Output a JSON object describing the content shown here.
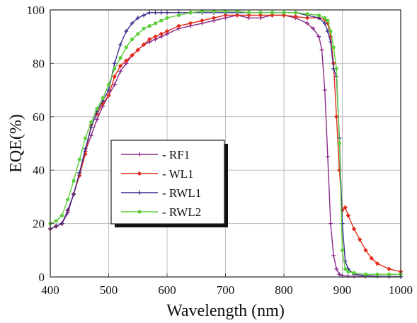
{
  "chart_data": {
    "type": "line",
    "xlabel": "Wavelength (nm)",
    "ylabel": "EQE(%)",
    "xlim": [
      400,
      1000
    ],
    "ylim": [
      0,
      100
    ],
    "xticks": [
      400,
      500,
      600,
      700,
      800,
      900,
      1000
    ],
    "yticks": [
      0,
      20,
      40,
      60,
      80,
      100
    ],
    "grid": true,
    "legend_position": "center-left",
    "series": [
      {
        "name": "- RF1",
        "color": "#8b2a8a",
        "marker": "plus",
        "x": [
          400,
          410,
          420,
          430,
          440,
          450,
          460,
          470,
          480,
          490,
          500,
          510,
          520,
          530,
          540,
          550,
          560,
          570,
          580,
          590,
          600,
          620,
          640,
          660,
          680,
          700,
          720,
          740,
          760,
          780,
          800,
          820,
          840,
          850,
          860,
          865,
          870,
          875,
          880,
          885,
          890,
          895,
          900,
          910,
          920,
          940,
          960,
          980,
          1000
        ],
        "y": [
          18,
          19,
          20,
          24,
          31,
          39,
          47,
          53,
          59,
          64,
          68,
          72,
          77,
          80,
          83,
          85,
          87,
          88,
          89,
          90,
          91,
          93,
          94,
          95,
          96,
          97,
          98,
          97,
          97,
          98,
          98,
          97,
          95,
          93,
          90,
          85,
          70,
          45,
          20,
          8,
          3,
          1,
          0.5,
          0.3,
          0.2,
          0.2,
          0.2,
          0.1,
          0.1
        ]
      },
      {
        "name": "- WL1",
        "color": "#e52b1c",
        "marker": "diamond",
        "x": [
          400,
          410,
          420,
          430,
          440,
          450,
          460,
          470,
          480,
          490,
          500,
          510,
          520,
          530,
          540,
          550,
          560,
          570,
          580,
          590,
          600,
          620,
          640,
          660,
          680,
          700,
          720,
          740,
          760,
          780,
          800,
          820,
          840,
          860,
          870,
          875,
          880,
          885,
          890,
          895,
          900,
          905,
          910,
          920,
          930,
          940,
          950,
          960,
          980,
          1000
        ],
        "y": [
          18,
          19,
          20,
          25,
          31,
          38,
          46,
          57,
          61,
          65,
          68,
          75,
          79,
          81,
          83,
          85,
          87,
          89,
          90,
          91,
          92,
          94,
          95,
          96,
          97,
          98,
          98,
          98,
          98,
          98,
          98,
          97.5,
          97,
          97,
          96.5,
          95,
          90,
          80,
          60,
          40,
          25,
          26,
          23,
          18,
          14,
          10,
          7,
          5,
          3,
          2
        ]
      },
      {
        "name": "- RWL1",
        "color": "#3b2f8f",
        "marker": "plus",
        "x": [
          400,
          410,
          420,
          430,
          440,
          450,
          460,
          470,
          480,
          490,
          500,
          510,
          520,
          530,
          540,
          550,
          560,
          570,
          580,
          590,
          600,
          620,
          640,
          660,
          680,
          700,
          720,
          740,
          760,
          780,
          800,
          820,
          840,
          860,
          870,
          875,
          880,
          885,
          890,
          895,
          900,
          905,
          910,
          920,
          940,
          960,
          980,
          1000
        ],
        "y": [
          18,
          19,
          20,
          25,
          31,
          39,
          48,
          56,
          62,
          66,
          70,
          80,
          87,
          92,
          95,
          97,
          98,
          99,
          99,
          99,
          99,
          99,
          99,
          99,
          99,
          99,
          99,
          99,
          99,
          99,
          99,
          99,
          98,
          97,
          95,
          92,
          88,
          78,
          75,
          52,
          20,
          6,
          3,
          1,
          0.5,
          0.3,
          0.2,
          0.1
        ]
      },
      {
        "name": "- RWL2",
        "color": "#5ccf3a",
        "marker": "circle",
        "x": [
          400,
          410,
          420,
          430,
          440,
          450,
          460,
          470,
          480,
          490,
          500,
          510,
          520,
          530,
          540,
          550,
          560,
          570,
          580,
          590,
          600,
          620,
          640,
          660,
          680,
          700,
          720,
          740,
          760,
          780,
          800,
          820,
          840,
          860,
          870,
          875,
          880,
          885,
          890,
          895,
          900,
          905,
          910,
          920,
          940,
          960,
          980,
          1000
        ],
        "y": [
          20,
          21,
          23,
          29,
          36,
          44,
          52,
          58,
          63,
          67,
          72,
          78,
          82,
          86,
          89,
          91,
          93,
          94,
          95,
          96,
          97,
          98,
          99,
          99.5,
          99.5,
          99.5,
          99.5,
          99,
          99,
          99,
          99,
          99,
          98.5,
          98,
          97,
          96,
          92,
          86,
          78,
          50,
          10,
          3,
          2,
          1.5,
          1,
          1,
          1,
          1
        ]
      }
    ]
  }
}
